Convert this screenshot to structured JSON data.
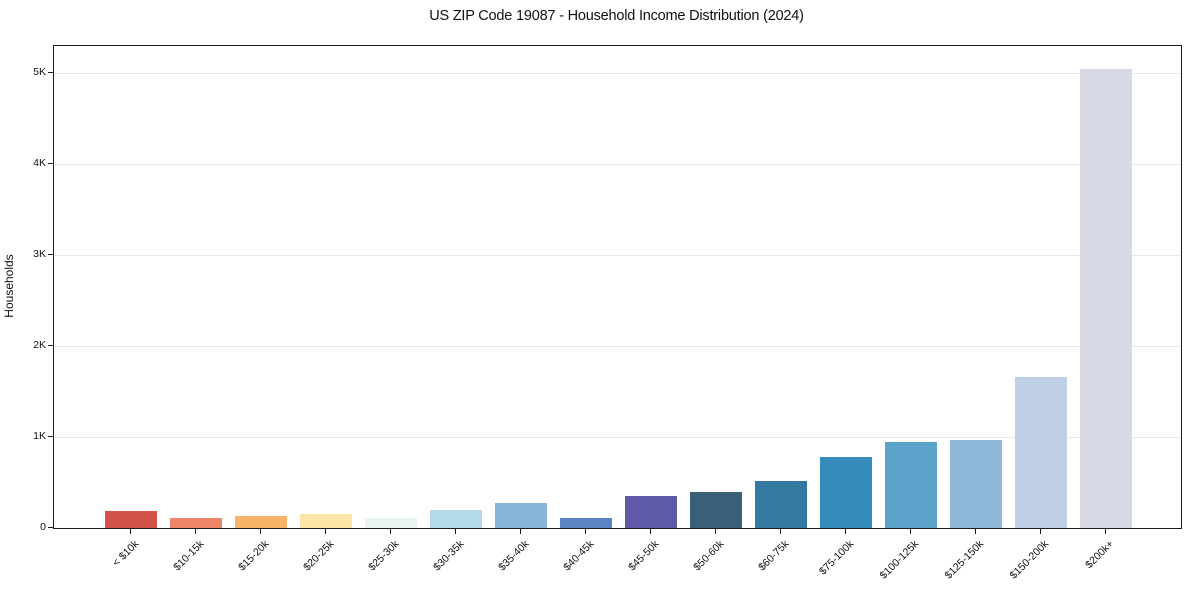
{
  "chart_data": {
    "type": "bar",
    "title": "US ZIP Code 19087 - Household Income Distribution (2024)",
    "xlabel": "",
    "ylabel": "Households",
    "categories": [
      "< $10k",
      "$10-15k",
      "$15-20k",
      "$20-25k",
      "$25-30k",
      "$30-35k",
      "$35-40k",
      "$40-45k",
      "$45-50k",
      "$50-60k",
      "$60-75k",
      "$75-100k",
      "$100-125k",
      "$125-150k",
      "$150-200k",
      "$200k+"
    ],
    "values": [
      190,
      110,
      130,
      150,
      105,
      195,
      275,
      110,
      350,
      400,
      520,
      785,
      950,
      965,
      1655,
      5050
    ],
    "bar_colors": [
      "#d25349",
      "#ee8468",
      "#f8b369",
      "#fbe5a7",
      "#e9f4f2",
      "#b4dbe9",
      "#87b5d9",
      "#5c84c2",
      "#5f5aa8",
      "#3a6078",
      "#3679a0",
      "#368bbd",
      "#5ba3cb",
      "#8fb7d7",
      "#becee4",
      "#d8d9e7"
    ],
    "yticks": [
      {
        "value": 0,
        "label": "0"
      },
      {
        "value": 1000,
        "label": "1K"
      },
      {
        "value": 2000,
        "label": "2K"
      },
      {
        "value": 3000,
        "label": "3K"
      },
      {
        "value": 4000,
        "label": "4K"
      },
      {
        "value": 5000,
        "label": "5K"
      }
    ],
    "ylim": [
      0,
      5300
    ],
    "grid": "horizontal",
    "gridline_color": "#eaeaea",
    "axis_color": "#1a1a1a",
    "legend_position": "none",
    "x_tick_rotation_deg": 45
  }
}
